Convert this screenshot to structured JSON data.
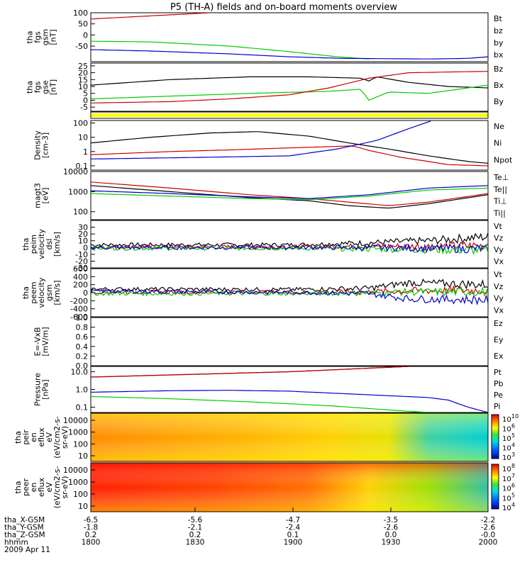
{
  "title": "P5 (TH-A) fields and on-board moments overview",
  "chart_data": [
    {
      "type": "line",
      "ylabel": [
        "tha",
        "fgs",
        "gsm",
        "[nT]"
      ],
      "ylim": [
        -120,
        100
      ],
      "yticks": [
        "100",
        "50",
        "0",
        "-50"
      ],
      "ytick_values": [
        100,
        50,
        0,
        -50
      ],
      "legend": [
        {
          "name": "Bt",
          "color": "#000000"
        },
        {
          "name": "bz",
          "color": "#cc0000"
        },
        {
          "name": "by",
          "color": "#00cc00"
        },
        {
          "name": "bx",
          "color": "#0000cc"
        }
      ],
      "series": [
        {
          "name": "bz",
          "color": "#cc0000",
          "x": [
            0,
            0.3
          ],
          "y": [
            72,
            100
          ]
        },
        {
          "name": "by",
          "color": "#00cc00",
          "x": [
            0,
            0.15,
            0.35,
            0.5,
            0.62,
            0.7
          ],
          "y": [
            -28,
            -31,
            -50,
            -75,
            -98,
            -108
          ]
        },
        {
          "name": "bx",
          "color": "#0000cc",
          "x": [
            0,
            0.15,
            0.35,
            0.5,
            0.63,
            0.85,
            0.95,
            1
          ],
          "y": [
            -66,
            -72,
            -85,
            -98,
            -105,
            -108,
            -105,
            -98
          ]
        }
      ]
    },
    {
      "type": "line",
      "ylabel": [
        "tha",
        "fgs",
        "gse",
        "[nT]"
      ],
      "ylim": [
        -8,
        27
      ],
      "yticks": [
        "25",
        "20",
        "15",
        "10",
        "5",
        "0",
        "-5"
      ],
      "ytick_values": [
        25,
        20,
        15,
        10,
        5,
        0,
        -5
      ],
      "legend": [
        {
          "name": "Bz",
          "color": "#cc0000"
        },
        {
          "name": "Bx",
          "color": "#000000"
        },
        {
          "name": "By",
          "color": "#00cc00"
        }
      ],
      "series": [
        {
          "name": "Bx",
          "color": "#000000",
          "x": [
            0,
            0.1,
            0.2,
            0.3,
            0.4,
            0.55,
            0.68,
            0.7,
            0.72,
            0.8,
            0.9,
            1
          ],
          "y": [
            11,
            13,
            15,
            16,
            17,
            17,
            16,
            14,
            17,
            13,
            10,
            9
          ]
        },
        {
          "name": "By",
          "color": "#00cc00",
          "x": [
            0,
            0.2,
            0.4,
            0.6,
            0.68,
            0.7,
            0.75,
            0.85,
            0.9,
            1
          ],
          "y": [
            1,
            3,
            5,
            6.5,
            8,
            0,
            6,
            5,
            7,
            11
          ]
        },
        {
          "name": "Bz",
          "color": "#cc0000",
          "x": [
            0,
            0.2,
            0.35,
            0.5,
            0.6,
            0.7,
            0.8,
            0.9,
            1
          ],
          "y": [
            -2,
            -1,
            1,
            4,
            9,
            16,
            20,
            20.5,
            21
          ]
        }
      ]
    },
    {
      "type": "bar_strip",
      "color": "#ffff00",
      "note": "mode bar"
    },
    {
      "type": "line",
      "scale": "log",
      "ylabel": [
        "Density",
        "[cm-3]"
      ],
      "ylim": [
        0.05,
        150
      ],
      "yticks": [
        "100",
        "10",
        "1",
        "0.1"
      ],
      "ytick_values": [
        100,
        10,
        1,
        0.1
      ],
      "legend": [
        {
          "name": "Ne",
          "color": "#cc0000"
        },
        {
          "name": "Ni",
          "color": "#000000"
        },
        {
          "name": "Npot",
          "color": "#0000cc"
        }
      ],
      "series": [
        {
          "name": "Ni",
          "color": "#000000",
          "x": [
            0,
            0.15,
            0.3,
            0.42,
            0.55,
            0.65,
            0.75,
            0.85,
            0.95,
            1
          ],
          "y": [
            4,
            10,
            20,
            25,
            12,
            4,
            1.5,
            0.5,
            0.2,
            0.15
          ]
        },
        {
          "name": "Ne",
          "color": "#cc0000",
          "x": [
            0,
            0.2,
            0.35,
            0.5,
            0.6,
            0.66,
            0.7,
            0.78,
            0.85,
            0.9,
            1
          ],
          "y": [
            0.6,
            1,
            1.3,
            1.8,
            2.2,
            2.5,
            1.2,
            0.4,
            0.2,
            0.12,
            0.1
          ]
        },
        {
          "name": "Npot",
          "color": "#0000cc",
          "x": [
            0,
            0.3,
            0.5,
            0.62,
            0.72,
            0.8,
            0.86
          ],
          "y": [
            0.3,
            0.4,
            0.5,
            1.5,
            6,
            40,
            150
          ]
        }
      ]
    },
    {
      "type": "line",
      "scale": "log",
      "ylabel": [
        "magt3",
        "[eV]"
      ],
      "ylim": [
        40,
        10000
      ],
      "yticks": [
        "10000",
        "1000",
        "100"
      ],
      "ytick_values": [
        10000,
        1000,
        100
      ],
      "legend": [
        {
          "name": "Te⊥",
          "color": "#cc0000"
        },
        {
          "name": "Te||",
          "color": "#000000"
        },
        {
          "name": "Ti⊥",
          "color": "#0000cc"
        },
        {
          "name": "Ti||",
          "color": "#00cc00"
        }
      ],
      "series": [
        {
          "name": "Te⊥",
          "color": "#cc0000",
          "x": [
            0,
            0.2,
            0.4,
            0.55,
            0.65,
            0.75,
            0.85,
            1
          ],
          "y": [
            3000,
            1500,
            700,
            450,
            300,
            200,
            300,
            800
          ]
        },
        {
          "name": "Te||",
          "color": "#000000",
          "x": [
            0,
            0.2,
            0.4,
            0.55,
            0.65,
            0.75,
            0.85,
            1
          ],
          "y": [
            2000,
            1000,
            500,
            350,
            200,
            150,
            250,
            700
          ]
        },
        {
          "name": "Ti⊥",
          "color": "#0000cc",
          "x": [
            0,
            0.2,
            0.4,
            0.55,
            0.7,
            0.85,
            1
          ],
          "y": [
            1100,
            800,
            550,
            450,
            700,
            1500,
            2000
          ]
        },
        {
          "name": "Ti||",
          "color": "#00cc00",
          "x": [
            0,
            0.2,
            0.4,
            0.55,
            0.7,
            0.85,
            1
          ],
          "y": [
            800,
            600,
            450,
            400,
            600,
            1200,
            1500
          ]
        }
      ]
    },
    {
      "type": "line",
      "ylabel": [
        "tha",
        "peim",
        "velocity",
        "dsl",
        "[km/s]"
      ],
      "ylim": [
        -30,
        40
      ],
      "yticks": [
        "30",
        "20",
        "10",
        "0",
        "-10",
        "-20",
        "-30"
      ],
      "ytick_values": [
        30,
        20,
        10,
        0,
        -10,
        -20,
        -30
      ],
      "legend": [
        {
          "name": "Vt",
          "color": "#000000"
        },
        {
          "name": "Vz",
          "color": "#cc0000"
        },
        {
          "name": "Vy",
          "color": "#00cc00"
        },
        {
          "name": "Vx",
          "color": "#0000cc"
        }
      ],
      "series": [
        {
          "name": "Vt",
          "color": "#000000",
          "x": [
            0,
            0.5,
            0.7,
            0.85,
            1
          ],
          "y": [
            4,
            4,
            7,
            10,
            16
          ]
        },
        {
          "name": "Vz",
          "color": "#cc0000",
          "x": [
            0,
            0.5,
            0.7,
            0.85,
            1
          ],
          "y": [
            1,
            1,
            2,
            2,
            3
          ]
        },
        {
          "name": "Vy",
          "color": "#00cc00",
          "x": [
            0,
            0.5,
            0.7,
            0.85,
            1
          ],
          "y": [
            -1,
            -1,
            -2,
            -3,
            -4
          ]
        },
        {
          "name": "Vx",
          "color": "#0000cc",
          "x": [
            0,
            0.5,
            0.7,
            0.85,
            1
          ],
          "y": [
            0,
            0,
            0,
            -1,
            -2
          ]
        }
      ]
    },
    {
      "type": "line",
      "ylabel": [
        "tha",
        "peem",
        "velocity",
        "gsm",
        "[km/s]"
      ],
      "ylim": [
        -600,
        600
      ],
      "yticks": [
        "600",
        "400",
        "200",
        "0",
        "-200",
        "-400",
        "-600"
      ],
      "ytick_values": [
        600,
        400,
        200,
        0,
        -200,
        -400,
        -600
      ],
      "legend": [
        {
          "name": "Vt",
          "color": "#000000"
        },
        {
          "name": "Vz",
          "color": "#cc0000"
        },
        {
          "name": "Vy",
          "color": "#00cc00"
        },
        {
          "name": "Vx",
          "color": "#0000cc"
        }
      ],
      "series": [
        {
          "name": "Vt",
          "color": "#000000",
          "x": [
            0,
            0.5,
            0.7,
            0.8,
            1
          ],
          "y": [
            90,
            80,
            110,
            250,
            200
          ]
        },
        {
          "name": "Vz",
          "color": "#cc0000",
          "x": [
            0,
            0.5,
            0.7,
            0.8,
            1
          ],
          "y": [
            20,
            10,
            20,
            50,
            60
          ]
        },
        {
          "name": "Vy",
          "color": "#00cc00",
          "x": [
            0,
            0.5,
            0.7,
            0.8,
            1
          ],
          "y": [
            -20,
            -20,
            -10,
            20,
            20
          ]
        },
        {
          "name": "Vx",
          "color": "#0000cc",
          "x": [
            0,
            0.5,
            0.7,
            0.8,
            1
          ],
          "y": [
            40,
            10,
            -20,
            -150,
            -180
          ]
        }
      ]
    },
    {
      "type": "line",
      "ylabel": [
        "E=-VxB",
        "[mV/m]"
      ],
      "ylim": [
        0,
        1
      ],
      "yticks": [
        "1.0",
        "0.8",
        "0.6",
        "0.4",
        "0.2",
        "0.0"
      ],
      "ytick_values": [
        1.0,
        0.8,
        0.6,
        0.4,
        0.2,
        0.0
      ],
      "legend": [
        {
          "name": "Ez",
          "color": "#cc0000"
        },
        {
          "name": "Ey",
          "color": "#00cc00"
        },
        {
          "name": "Ex",
          "color": "#0000cc"
        }
      ],
      "series": []
    },
    {
      "type": "line",
      "scale": "log",
      "ylabel": [
        "Pressure",
        "[nPa]"
      ],
      "ylim": [
        0.05,
        20
      ],
      "yticks": [
        "10.0",
        "1.0",
        "0.1"
      ],
      "ytick_values": [
        10,
        1,
        0.1
      ],
      "legend": [
        {
          "name": "Pt",
          "color": "#000000"
        },
        {
          "name": "Pb",
          "color": "#cc0000"
        },
        {
          "name": "Pe",
          "color": "#00cc00"
        },
        {
          "name": "Pi",
          "color": "#0000cc"
        }
      ],
      "series": [
        {
          "name": "Pt",
          "color": "#000000",
          "x": [
            0,
            0.5,
            0.8
          ],
          "y": [
            5,
            10,
            20
          ]
        },
        {
          "name": "Pb",
          "color": "#cc0000",
          "x": [
            0,
            0.5,
            0.8
          ],
          "y": [
            5,
            10,
            20
          ]
        },
        {
          "name": "Pe",
          "color": "#00cc00",
          "x": [
            0,
            0.2,
            0.4,
            0.6,
            0.75,
            0.85
          ],
          "y": [
            0.4,
            0.3,
            0.2,
            0.12,
            0.07,
            0.05
          ]
        },
        {
          "name": "Pi",
          "color": "#0000cc",
          "x": [
            0,
            0.2,
            0.35,
            0.5,
            0.7,
            0.85,
            0.9,
            0.95,
            1
          ],
          "y": [
            0.7,
            0.85,
            0.9,
            0.8,
            0.5,
            0.35,
            0.25,
            0.1,
            0.05
          ]
        }
      ]
    },
    {
      "type": "heatmap",
      "ylabel": [
        "tha",
        "peir",
        "en",
        "eflux",
        "eV",
        "(eV/cm2-s-",
        "sr-eV)"
      ],
      "yticks": [
        "10000",
        "1000",
        "100",
        "10"
      ],
      "colorbar_ticks": [
        "10",
        "6",
        "5",
        "4",
        "3"
      ]
    },
    {
      "type": "heatmap",
      "ylabel": [
        "tha",
        "peer",
        "en",
        "eflux",
        "eV",
        "(eV/cm2-s-",
        "sr-eV)"
      ],
      "yticks": [
        "10000",
        "1000",
        "100",
        "10"
      ],
      "colorbar_ticks": [
        "8",
        "7",
        "6",
        "5",
        "4"
      ]
    }
  ],
  "x_axis": {
    "tick_times": [
      "1800",
      "1830",
      "1900",
      "1930",
      "2000"
    ],
    "rows": [
      {
        "label": "tha_X-GSM",
        "values": [
          "-6.5",
          "-5.6",
          "-4.7",
          "-3.5",
          "-2.2"
        ]
      },
      {
        "label": "tha_Y-GSM",
        "values": [
          "-1.8",
          "-2.1",
          "-2.4",
          "-2.6",
          "-2.6"
        ]
      },
      {
        "label": "tha_Z-GSM",
        "values": [
          "0.2",
          "0.2",
          "0.1",
          "0.0",
          "-0.0"
        ]
      },
      {
        "label": "hhmm",
        "values": []
      }
    ],
    "date": "2009 Apr 11"
  }
}
